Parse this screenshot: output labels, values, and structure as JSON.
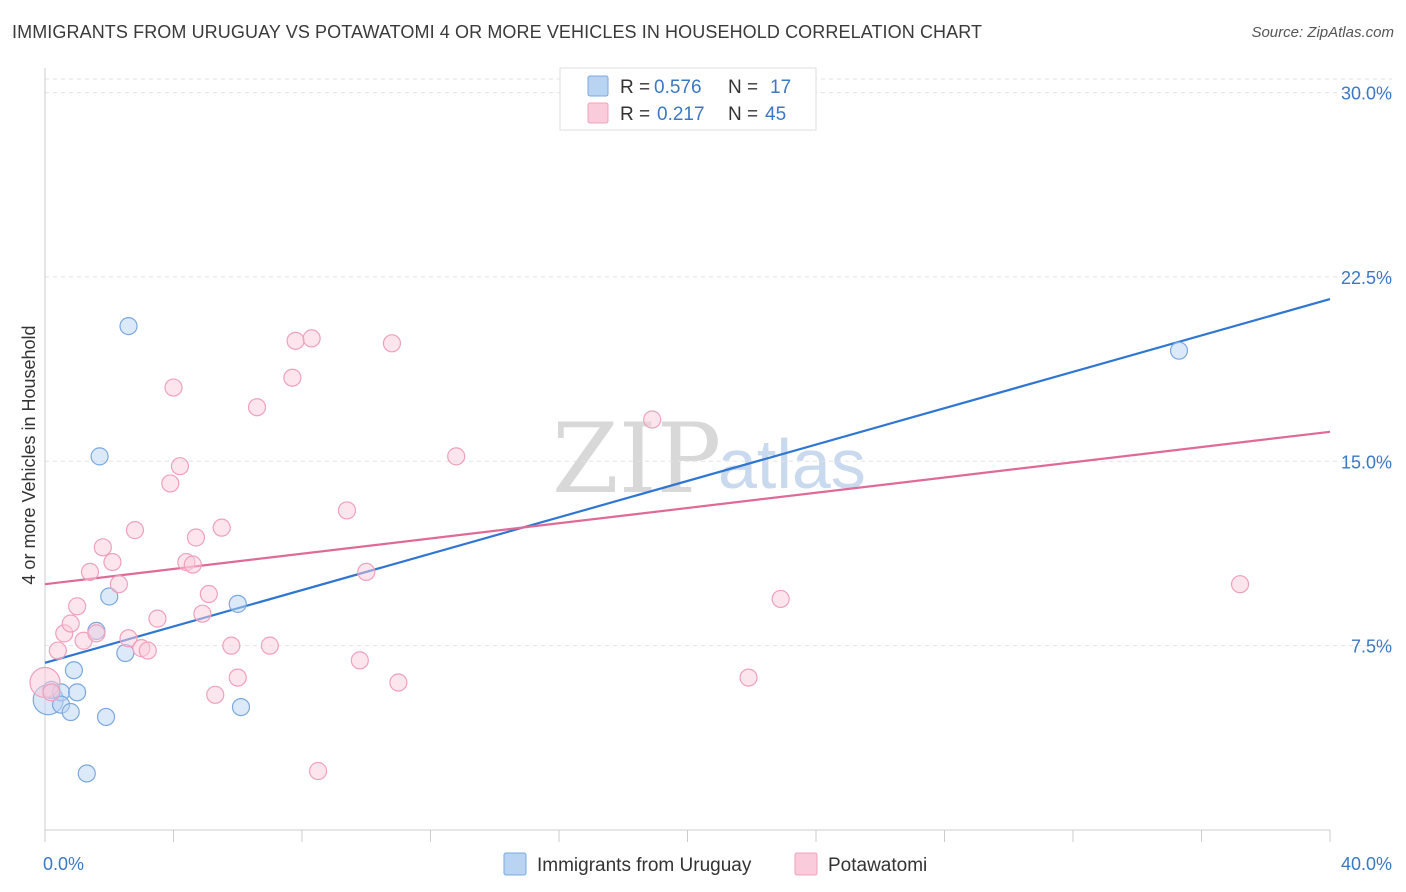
{
  "title": "IMMIGRANTS FROM URUGUAY VS POTAWATOMI 4 OR MORE VEHICLES IN HOUSEHOLD CORRELATION CHART",
  "source": "Source: ZipAtlas.com",
  "watermark": {
    "zip": "ZIP",
    "atlas": "atlas"
  },
  "legend": {
    "r_label": "R =",
    "n_label": "N =",
    "rows": [
      {
        "r": "0.576",
        "n": "17"
      },
      {
        "r": "0.217",
        "n": "45"
      }
    ]
  },
  "chart_data": {
    "type": "scatter",
    "title": "IMMIGRANTS FROM URUGUAY VS POTAWATOMI 4 OR MORE VEHICLES IN HOUSEHOLD CORRELATION CHART",
    "xlabel": "",
    "ylabel": "4 or more Vehicles in Household",
    "xlim": [
      0,
      40
    ],
    "ylim": [
      0,
      31
    ],
    "x_tick_labels": [
      "0.0%",
      "40.0%"
    ],
    "y_ticks": [
      7.5,
      15.0,
      22.5,
      30.0
    ],
    "y_tick_labels": [
      "7.5%",
      "15.0%",
      "22.5%",
      "30.0%"
    ],
    "grid": true,
    "series": [
      {
        "name": "Immigrants from Uruguay",
        "color": "#7aa9e0",
        "fill": "#b9d3f3",
        "line_color": "#2f76d2",
        "trend": {
          "x": [
            0,
            40
          ],
          "y": [
            6.8,
            21.6
          ]
        },
        "points": [
          [
            0.1,
            5.3
          ],
          [
            0.2,
            5.7
          ],
          [
            0.5,
            5.6
          ],
          [
            0.9,
            6.5
          ],
          [
            0.5,
            5.1
          ],
          [
            0.8,
            4.8
          ],
          [
            1.0,
            5.6
          ],
          [
            1.6,
            8.1
          ],
          [
            1.9,
            4.6
          ],
          [
            2.0,
            9.5
          ],
          [
            2.5,
            7.2
          ],
          [
            1.7,
            15.2
          ],
          [
            2.6,
            20.5
          ],
          [
            6.0,
            9.2
          ],
          [
            6.1,
            5.0
          ],
          [
            1.3,
            2.3
          ],
          [
            35.3,
            19.5
          ]
        ]
      },
      {
        "name": "Potawatomi",
        "color": "#f0a0bc",
        "fill": "#f9cbdb",
        "line_color": "#e06a96",
        "trend": {
          "x": [
            0,
            40
          ],
          "y": [
            10.0,
            16.2
          ]
        },
        "points": [
          [
            0.0,
            6.0
          ],
          [
            0.4,
            7.3
          ],
          [
            0.6,
            8.0
          ],
          [
            0.8,
            8.4
          ],
          [
            1.0,
            9.1
          ],
          [
            1.2,
            7.7
          ],
          [
            1.4,
            10.5
          ],
          [
            1.6,
            8.0
          ],
          [
            1.8,
            11.5
          ],
          [
            2.1,
            10.9
          ],
          [
            2.3,
            10.0
          ],
          [
            2.6,
            7.8
          ],
          [
            2.8,
            12.2
          ],
          [
            3.0,
            7.4
          ],
          [
            3.2,
            7.3
          ],
          [
            3.5,
            8.6
          ],
          [
            3.9,
            14.1
          ],
          [
            4.0,
            18.0
          ],
          [
            4.2,
            14.8
          ],
          [
            4.4,
            10.9
          ],
          [
            4.6,
            10.8
          ],
          [
            4.7,
            11.9
          ],
          [
            4.9,
            8.8
          ],
          [
            5.1,
            9.6
          ],
          [
            5.3,
            5.5
          ],
          [
            5.5,
            12.3
          ],
          [
            5.8,
            7.5
          ],
          [
            6.0,
            6.2
          ],
          [
            6.6,
            17.2
          ],
          [
            7.0,
            7.5
          ],
          [
            7.7,
            18.4
          ],
          [
            7.8,
            19.9
          ],
          [
            8.3,
            20.0
          ],
          [
            8.5,
            2.4
          ],
          [
            9.4,
            13.0
          ],
          [
            9.8,
            6.9
          ],
          [
            10.0,
            10.5
          ],
          [
            10.8,
            19.8
          ],
          [
            11.0,
            6.0
          ],
          [
            12.8,
            15.2
          ],
          [
            18.9,
            16.7
          ],
          [
            21.9,
            6.2
          ],
          [
            22.9,
            9.4
          ],
          [
            37.2,
            10.0
          ],
          [
            0.2,
            5.6
          ]
        ]
      }
    ]
  },
  "bottom_legend": [
    "Immigrants from Uruguay",
    "Potawatomi"
  ]
}
